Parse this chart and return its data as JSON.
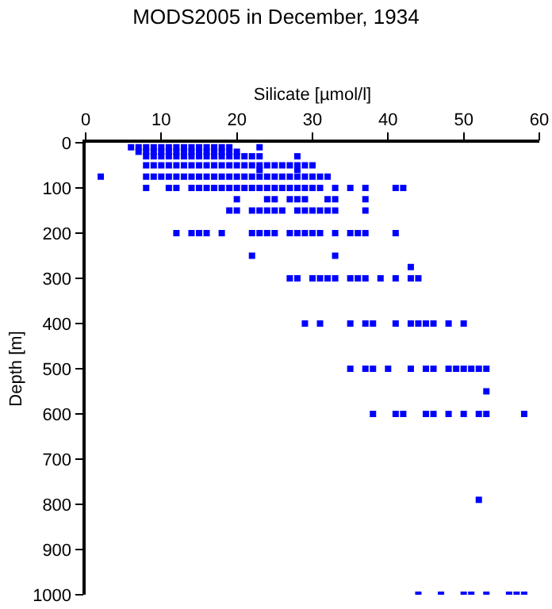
{
  "chart_data": {
    "type": "scatter",
    "title": "MODS2005 in December, 1934",
    "xlabel": "Silicate [µmol/l]",
    "ylabel": "Depth [m]",
    "x": [
      6,
      7,
      8,
      9,
      10,
      11,
      12,
      13,
      14,
      15,
      16,
      17,
      18,
      19,
      23,
      7,
      8,
      9,
      10,
      11,
      12,
      13,
      14,
      15,
      16,
      17,
      18,
      19,
      20,
      8,
      9,
      10,
      11,
      12,
      13,
      14,
      15,
      16,
      17,
      18,
      19,
      20,
      21,
      22,
      23,
      28,
      8,
      9,
      10,
      11,
      12,
      13,
      14,
      15,
      16,
      17,
      18,
      19,
      20,
      21,
      22,
      23,
      24,
      25,
      26,
      27,
      28,
      29,
      30,
      23,
      28,
      2,
      8,
      9,
      10,
      11,
      12,
      13,
      14,
      15,
      16,
      17,
      18,
      19,
      20,
      21,
      22,
      23,
      24,
      25,
      26,
      27,
      28,
      29,
      30,
      31,
      32,
      8,
      11,
      12,
      14,
      15,
      16,
      17,
      18,
      19,
      20,
      21,
      22,
      23,
      24,
      25,
      26,
      27,
      28,
      29,
      30,
      31,
      33,
      35,
      37,
      41,
      42,
      20,
      24,
      25,
      27,
      28,
      29,
      32,
      33,
      37,
      19,
      20,
      22,
      23,
      24,
      25,
      26,
      28,
      29,
      30,
      31,
      32,
      33,
      37,
      12,
      14,
      15,
      16,
      18,
      22,
      23,
      24,
      25,
      27,
      28,
      29,
      30,
      31,
      33,
      35,
      36,
      37,
      41,
      22,
      33,
      43,
      27,
      28,
      30,
      31,
      32,
      33,
      35,
      36,
      37,
      39,
      41,
      43,
      44,
      29,
      31,
      35,
      37,
      38,
      41,
      43,
      44,
      45,
      46,
      48,
      50,
      35,
      37,
      38,
      40,
      43,
      45,
      46,
      48,
      49,
      50,
      51,
      52,
      53,
      53,
      38,
      41,
      42,
      45,
      46,
      48,
      50,
      52,
      53,
      58,
      52,
      44,
      47,
      50,
      51,
      53,
      56,
      57,
      58
    ],
    "values": [
      10,
      10,
      10,
      10,
      10,
      10,
      10,
      10,
      10,
      10,
      10,
      10,
      10,
      10,
      10,
      20,
      20,
      20,
      20,
      20,
      20,
      20,
      20,
      20,
      20,
      20,
      20,
      20,
      20,
      30,
      30,
      30,
      30,
      30,
      30,
      30,
      30,
      30,
      30,
      30,
      30,
      30,
      30,
      30,
      30,
      30,
      50,
      50,
      50,
      50,
      50,
      50,
      50,
      50,
      50,
      50,
      50,
      50,
      50,
      50,
      50,
      50,
      50,
      50,
      50,
      50,
      50,
      50,
      50,
      60,
      60,
      75,
      75,
      75,
      75,
      75,
      75,
      75,
      75,
      75,
      75,
      75,
      75,
      75,
      75,
      75,
      75,
      75,
      75,
      75,
      75,
      75,
      75,
      75,
      75,
      75,
      75,
      100,
      100,
      100,
      100,
      100,
      100,
      100,
      100,
      100,
      100,
      100,
      100,
      100,
      100,
      100,
      100,
      100,
      100,
      100,
      100,
      100,
      100,
      100,
      100,
      100,
      100,
      125,
      125,
      125,
      125,
      125,
      125,
      125,
      125,
      125,
      150,
      150,
      150,
      150,
      150,
      150,
      150,
      150,
      150,
      150,
      150,
      150,
      150,
      150,
      200,
      200,
      200,
      200,
      200,
      200,
      200,
      200,
      200,
      200,
      200,
      200,
      200,
      200,
      200,
      200,
      200,
      200,
      200,
      250,
      250,
      275,
      300,
      300,
      300,
      300,
      300,
      300,
      300,
      300,
      300,
      300,
      300,
      300,
      300,
      400,
      400,
      400,
      400,
      400,
      400,
      400,
      400,
      400,
      400,
      400,
      400,
      500,
      500,
      500,
      500,
      500,
      500,
      500,
      500,
      500,
      500,
      500,
      500,
      500,
      550,
      600,
      600,
      600,
      600,
      600,
      600,
      600,
      600,
      600,
      600,
      790,
      1000,
      1000,
      1000,
      1000,
      1000,
      1000,
      1000,
      1000
    ],
    "color": "#0000ff",
    "marker": "square",
    "xlim": [
      0,
      60
    ],
    "xticks": [
      0,
      10,
      20,
      30,
      40,
      50,
      60
    ],
    "ylim": [
      1000,
      0
    ],
    "yticks": [
      0,
      100,
      200,
      300,
      400,
      500,
      600,
      700,
      800,
      900,
      1000
    ]
  }
}
